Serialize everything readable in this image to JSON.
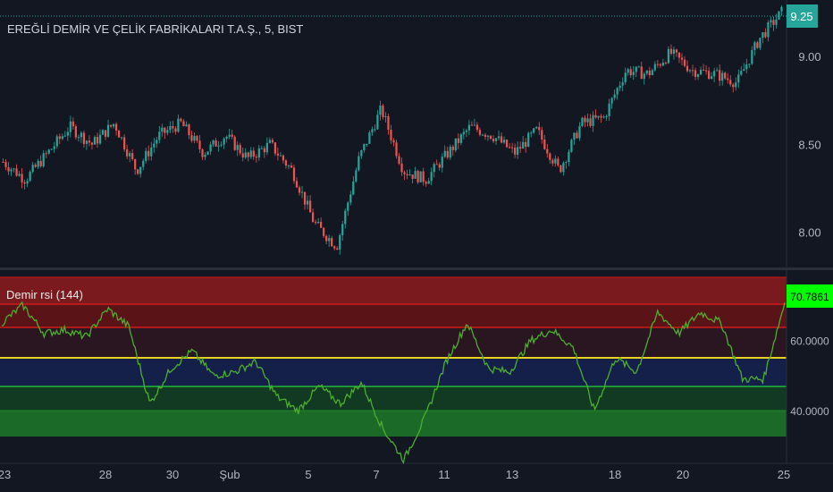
{
  "header": {
    "title": "EREĞLİ DEMİR VE ÇELİK FABRİKALARI T.A.Ş., 5, BIST"
  },
  "price_panel": {
    "current_price": "9.25",
    "ticks": [
      {
        "value": 9.0,
        "label": "9.00"
      },
      {
        "value": 8.5,
        "label": "8.50"
      },
      {
        "value": 8.0,
        "label": "8.00"
      }
    ]
  },
  "rsi_panel": {
    "title": "Demir rsi (144)",
    "current_value": "70.7861",
    "ticks": [
      {
        "value": 60,
        "label": "60.0000"
      },
      {
        "value": 40,
        "label": "40.0000"
      }
    ]
  },
  "x_axis": {
    "labels": [
      "23",
      "28",
      "30",
      "Şub",
      "5",
      "7",
      "11",
      "13",
      "18",
      "20",
      "25"
    ]
  },
  "colors": {
    "background": "#131722",
    "candle_up": "#26a69a",
    "candle_down": "#ef5350",
    "price_tag": "#26a69a",
    "rsi_line": "#4caf2f",
    "rsi_tag": "#00ff00",
    "yellow_line": "#e8d21d",
    "red_line": "#d11a1a",
    "green_line": "#22b83a"
  },
  "chart_data": [
    {
      "type": "candlestick",
      "title": "EREĞLİ DEMİR VE ÇELİK FABRİKALARI T.A.Ş., 5, BIST",
      "ylim": [
        7.8,
        9.32
      ],
      "x": [
        "23",
        "28",
        "30",
        "Şub",
        "5",
        "7",
        "11",
        "13",
        "18",
        "20",
        "25"
      ],
      "close_path": [
        8.4,
        8.3,
        8.45,
        8.6,
        8.5,
        8.62,
        8.35,
        8.55,
        8.62,
        8.45,
        8.55,
        8.42,
        8.5,
        8.35,
        8.05,
        7.92,
        8.42,
        8.7,
        8.35,
        8.3,
        8.45,
        8.6,
        8.55,
        8.45,
        8.58,
        8.35,
        8.62,
        8.65,
        8.92,
        8.9,
        9.02,
        8.92,
        8.9,
        8.85,
        9.1,
        9.25
      ],
      "last_price": 9.25
    },
    {
      "type": "line",
      "title": "Demir rsi (144)",
      "ylim": [
        25,
        80
      ],
      "bands": {
        "upper_red": 70,
        "lower_red": 60,
        "yellow": 50,
        "green": 40
      },
      "values": [
        65,
        70,
        62,
        63,
        61,
        69,
        64,
        42,
        52,
        57,
        50,
        51,
        54,
        44,
        40,
        47,
        42,
        48,
        35,
        26,
        38,
        54,
        65,
        52,
        51,
        60,
        63,
        58,
        40,
        55,
        51,
        68,
        62,
        68,
        65,
        49,
        49,
        70.79
      ],
      "last_value": 70.7861
    }
  ]
}
